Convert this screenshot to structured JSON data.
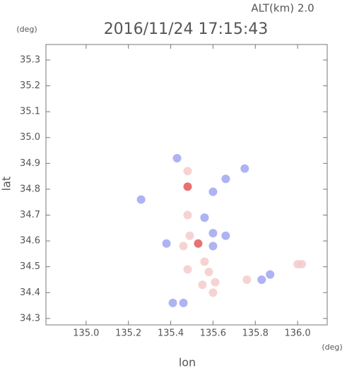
{
  "chart_data": {
    "type": "scatter",
    "title": "2016/11/24 17:15:43",
    "subtitle": "ALT(km) 2.0",
    "y_unit": "(deg)",
    "x_unit": "(deg)",
    "x_label": "lon",
    "y_label": "lat",
    "xlim": [
      134.81,
      136.14
    ],
    "ylim": [
      34.275,
      35.36
    ],
    "xticks": [
      {
        "value": 135,
        "label": "135.0"
      },
      135.2,
      135.4,
      135.6,
      135.8,
      {
        "value": 136,
        "label": "136.0"
      }
    ],
    "yticks": [
      34.3,
      34.4,
      34.5,
      34.6,
      34.7,
      34.8,
      34.9,
      {
        "value": 35,
        "label": "35.0"
      },
      35.1,
      35.2,
      35.3
    ],
    "x": [
      135.43,
      135.48,
      135.48,
      135.6,
      135.66,
      135.75,
      135.26,
      135.48,
      135.56,
      135.6,
      135.49,
      135.53,
      135.6,
      135.46,
      135.38,
      135.56,
      135.58,
      135.61,
      135.55,
      135.6,
      135.46,
      135.41,
      135.83,
      135.87,
      135.76,
      136.0,
      136.02,
      135.48,
      135.66
    ],
    "values": [
      34.92,
      34.87,
      34.81,
      34.79,
      34.84,
      34.88,
      34.76,
      34.7,
      34.69,
      34.63,
      34.62,
      34.59,
      34.58,
      34.58,
      34.59,
      34.52,
      34.48,
      34.44,
      34.43,
      34.4,
      34.36,
      34.36,
      34.45,
      34.47,
      34.45,
      34.51,
      34.51,
      34.49,
      34.62
    ],
    "colors": [
      "#9aa0f0",
      "#f4c8c8",
      "#e05050",
      "#9aa0f0",
      "#9aa0f0",
      "#9aa0f0",
      "#9aa0f0",
      "#f4c8c8",
      "#9aa0f0",
      "#9aa0f0",
      "#f4c8c8",
      "#e05050",
      "#9aa0f0",
      "#f4c8c8",
      "#9aa0f0",
      "#f4c8c8",
      "#f4c8c8",
      "#f4c8c8",
      "#f4c8c8",
      "#f4c8c8",
      "#9aa0f0",
      "#9aa0f0",
      "#9aa0f0",
      "#9aa0f0",
      "#f4c8c8",
      "#f4c8c8",
      "#f4c8c8",
      "#f4c8c8",
      "#9aa0f0"
    ]
  }
}
